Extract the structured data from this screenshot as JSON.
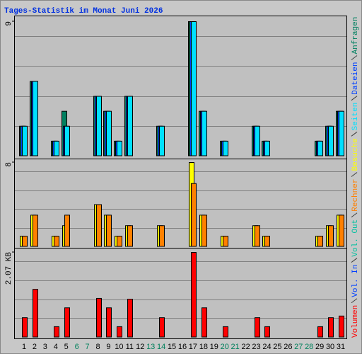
{
  "title": "Tages-Statistik im Monat Juni 2026",
  "x_axis": {
    "categories": [
      "1",
      "2",
      "3",
      "4",
      "5",
      "6",
      "7",
      "8",
      "9",
      "10",
      "11",
      "12",
      "13",
      "14",
      "15",
      "16",
      "17",
      "18",
      "19",
      "20",
      "21",
      "22",
      "23",
      "24",
      "25",
      "26",
      "27",
      "28",
      "29",
      "30",
      "31"
    ],
    "colors": [
      "#000000",
      "#000000",
      "#000000",
      "#000000",
      "#000000",
      "#00805c",
      "#00805c",
      "#000000",
      "#000000",
      "#000000",
      "#000000",
      "#000000",
      "#00805c",
      "#00805c",
      "#000000",
      "#000000",
      "#000000",
      "#000000",
      "#000000",
      "#00805c",
      "#00805c",
      "#000000",
      "#000000",
      "#000000",
      "#000000",
      "#000000",
      "#00805c",
      "#00805c",
      "#000000",
      "#000000",
      "#000000"
    ]
  },
  "chart_data": [
    {
      "type": "bar",
      "ylim": [
        0,
        9
      ],
      "yticks": [
        9
      ],
      "series": [
        {
          "name": "Anfragen",
          "color": "#008060",
          "values": [
            2,
            5,
            0,
            1,
            3,
            0,
            0,
            4,
            3,
            1,
            4,
            0,
            0,
            2,
            0,
            0,
            9,
            3,
            0,
            1,
            0,
            0,
            2,
            1,
            0,
            0,
            0,
            0,
            1,
            2,
            3
          ]
        },
        {
          "name": "Dateien",
          "color": "#0040ff",
          "values": [
            2,
            5,
            0,
            1,
            2,
            0,
            0,
            4,
            3,
            1,
            4,
            0,
            0,
            2,
            0,
            0,
            9,
            3,
            0,
            1,
            0,
            0,
            2,
            1,
            0,
            0,
            0,
            0,
            1,
            2,
            3
          ]
        },
        {
          "name": "Seiten",
          "color": "#00e0ff",
          "values": [
            2,
            5,
            0,
            1,
            2,
            0,
            0,
            4,
            3,
            1,
            4,
            0,
            0,
            2,
            0,
            0,
            9,
            3,
            0,
            1,
            0,
            0,
            2,
            1,
            0,
            0,
            0,
            0,
            1,
            2,
            3
          ]
        }
      ]
    },
    {
      "type": "bar",
      "ylim": [
        0,
        8
      ],
      "yticks": [
        8
      ],
      "series": [
        {
          "name": "Besuche",
          "color": "#ffff00",
          "values": [
            1,
            3,
            0,
            1,
            2,
            0,
            0,
            4,
            3,
            1,
            2,
            0,
            0,
            2,
            0,
            0,
            8,
            3,
            0,
            1,
            0,
            0,
            2,
            1,
            0,
            0,
            0,
            0,
            1,
            2,
            3
          ]
        },
        {
          "name": "Rechner",
          "color": "#ff8000",
          "values": [
            1,
            3,
            0,
            1,
            3,
            0,
            0,
            4,
            3,
            1,
            2,
            0,
            0,
            2,
            0,
            0,
            6,
            3,
            0,
            1,
            0,
            0,
            2,
            1,
            0,
            0,
            0,
            0,
            1,
            2,
            3
          ]
        }
      ]
    },
    {
      "type": "bar",
      "ylim": [
        0,
        2.07
      ],
      "yticks": [
        {
          "value": 2.07,
          "label": "2.07 KB"
        }
      ],
      "series": [
        {
          "name": "Vol. Out",
          "color": "#00c0a0",
          "values": [
            0,
            0,
            0,
            0,
            0,
            0,
            0,
            0,
            0,
            0,
            0,
            0,
            0,
            0,
            0,
            0,
            0,
            0,
            0,
            0,
            0,
            0,
            0,
            0,
            0,
            0,
            0,
            0,
            0,
            0,
            0
          ]
        },
        {
          "name": "Vol. In",
          "color": "#0040ff",
          "values": [
            0,
            0,
            0,
            0,
            0,
            0,
            0,
            0,
            0,
            0,
            0,
            0,
            0,
            0,
            0,
            0,
            0,
            0,
            0,
            0,
            0,
            0,
            0,
            0,
            0,
            0,
            0,
            0,
            0,
            0,
            0
          ]
        },
        {
          "name": "Volumen",
          "color": "#ff0000",
          "values": [
            0.48,
            1.17,
            0,
            0.26,
            0.72,
            0,
            0,
            0.95,
            0.72,
            0.26,
            0.93,
            0,
            0,
            0.48,
            0,
            0,
            2.07,
            0.72,
            0,
            0.26,
            0,
            0,
            0.48,
            0.26,
            0,
            0,
            0,
            0,
            0.26,
            0.48,
            0.52
          ]
        }
      ]
    }
  ]
}
